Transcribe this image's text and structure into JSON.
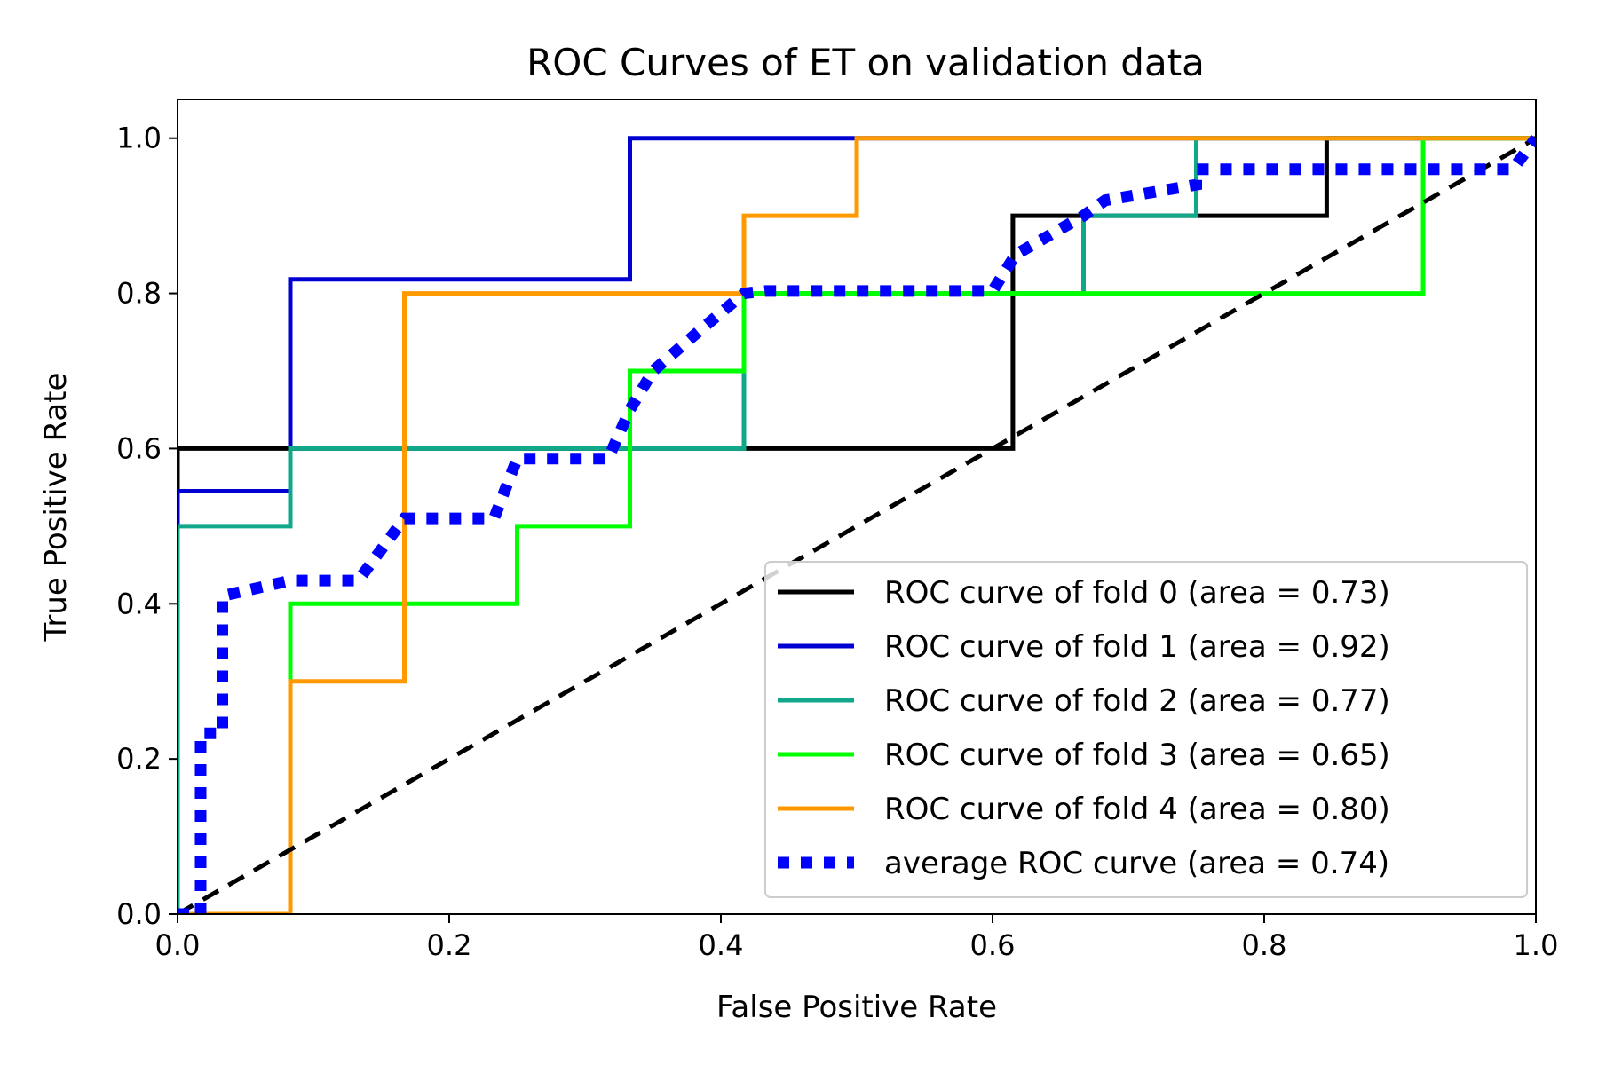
{
  "chart_data": {
    "type": "line",
    "title": "ROC Curves of ET on validation data",
    "xlabel": "False Positive Rate",
    "ylabel": "True Positive Rate",
    "xlim": [
      0.0,
      1.0
    ],
    "ylim": [
      0.0,
      1.05
    ],
    "xticks": [
      "0.0",
      "0.2",
      "0.4",
      "0.6",
      "0.8",
      "1.0"
    ],
    "yticks": [
      "0.0",
      "0.2",
      "0.4",
      "0.6",
      "0.8",
      "1.0"
    ],
    "grid": false,
    "legend_position": "lower-right",
    "diagonal": {
      "color": "#000000",
      "style": "dashed",
      "x": [
        0,
        1
      ],
      "y": [
        0,
        1
      ]
    },
    "series": [
      {
        "name": "ROC curve of fold 0 (area = 0.73)",
        "color": "#000000",
        "style": "solid",
        "x": [
          0,
          0,
          0.615,
          0.615,
          0.846,
          0.846,
          1.0
        ],
        "y": [
          0,
          0.6,
          0.6,
          0.9,
          0.9,
          1.0,
          1.0
        ]
      },
      {
        "name": "ROC curve of fold 1 (area = 0.92)",
        "color": "#0000d0",
        "style": "solid",
        "x": [
          0,
          0,
          0.083,
          0.083,
          0.333,
          0.333,
          1.0
        ],
        "y": [
          0,
          0.545,
          0.545,
          0.818,
          0.818,
          1.0,
          1.0
        ]
      },
      {
        "name": "ROC curve of fold 2 (area = 0.77)",
        "color": "#11a88a",
        "style": "solid",
        "x": [
          0,
          0,
          0.083,
          0.083,
          0.417,
          0.417,
          0.667,
          0.667,
          0.75,
          0.75,
          1.0
        ],
        "y": [
          0,
          0.5,
          0.5,
          0.6,
          0.6,
          0.8,
          0.8,
          0.9,
          0.9,
          1.0,
          1.0
        ]
      },
      {
        "name": "ROC curve of fold 3 (area = 0.65)",
        "color": "#00ff00",
        "style": "solid",
        "x": [
          0,
          0,
          0.083,
          0.083,
          0.25,
          0.25,
          0.333,
          0.333,
          0.417,
          0.417,
          0.917,
          0.917,
          1.0
        ],
        "y": [
          0,
          0.0,
          0.0,
          0.4,
          0.4,
          0.5,
          0.5,
          0.7,
          0.7,
          0.8,
          0.8,
          1.0,
          1.0
        ]
      },
      {
        "name": "ROC curve of fold 4 (area = 0.80)",
        "color": "#ff9900",
        "style": "solid",
        "x": [
          0,
          0.083,
          0.083,
          0.167,
          0.167,
          0.417,
          0.417,
          0.5,
          0.5,
          1.0
        ],
        "y": [
          0,
          0.0,
          0.3,
          0.3,
          0.8,
          0.8,
          0.9,
          0.9,
          1.0,
          1.0
        ]
      },
      {
        "name": "average ROC curve (area = 0.74)",
        "color": "#0000ff",
        "style": "dotted",
        "x": [
          0.0,
          0.017,
          0.017,
          0.033,
          0.033,
          0.083,
          0.133,
          0.167,
          0.233,
          0.25,
          0.317,
          0.333,
          0.35,
          0.383,
          0.417,
          0.433,
          0.6,
          0.617,
          0.667,
          0.683,
          0.75,
          0.75,
          0.983,
          1.0
        ],
        "y": [
          0.0,
          0.0,
          0.233,
          0.233,
          0.41,
          0.43,
          0.43,
          0.51,
          0.51,
          0.587,
          0.587,
          0.65,
          0.7,
          0.75,
          0.8,
          0.803,
          0.803,
          0.85,
          0.9,
          0.92,
          0.94,
          0.96,
          0.96,
          1.0
        ]
      }
    ]
  }
}
